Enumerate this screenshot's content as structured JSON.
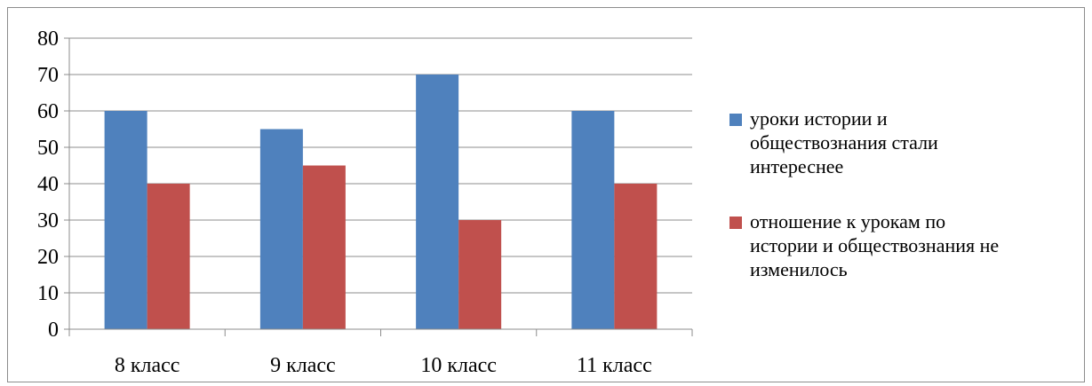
{
  "chart_data": {
    "type": "bar",
    "categories": [
      "8 класс",
      "9 класс",
      "10 класс",
      "11 класс"
    ],
    "series": [
      {
        "name": "уроки истории и обществознания стали интереснее",
        "legend_lines": [
          "уроки истории и",
          "обществознания стали",
          "интереснее"
        ],
        "color": "#4f81bd",
        "values": [
          60,
          55,
          70,
          60
        ]
      },
      {
        "name": "отношение к урокам по истории и обществознания не изменилось",
        "legend_lines": [
          "отношение к урокам по",
          "истории и обществознания не",
          "изменилось"
        ],
        "color": "#c0504d",
        "values": [
          40,
          45,
          30,
          40
        ]
      }
    ],
    "ylim": [
      0,
      80
    ],
    "yticks": [
      "0",
      "10",
      "20",
      "30",
      "40",
      "50",
      "60",
      "70",
      "80"
    ],
    "grid": true,
    "legend_position": "right",
    "xlabel": "",
    "ylabel": "",
    "title": ""
  }
}
